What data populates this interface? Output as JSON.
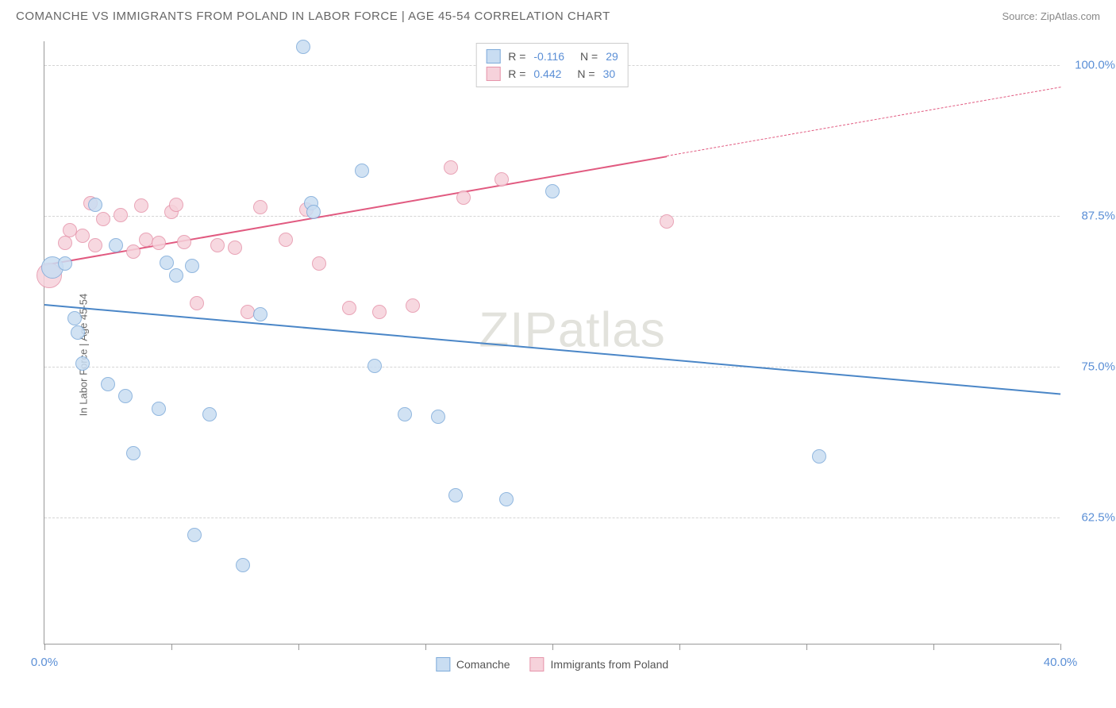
{
  "title": "COMANCHE VS IMMIGRANTS FROM POLAND IN LABOR FORCE | AGE 45-54 CORRELATION CHART",
  "source": "Source: ZipAtlas.com",
  "watermark": "ZIPatlas",
  "ylabel": "In Labor Force | Age 45-54",
  "chart": {
    "type": "scatter",
    "xlim": [
      0,
      40
    ],
    "ylim": [
      52,
      102
    ],
    "yticks": [
      62.5,
      75.0,
      87.5,
      100.0
    ],
    "ytick_labels": [
      "62.5%",
      "75.0%",
      "87.5%",
      "100.0%"
    ],
    "xticks": [
      0,
      5,
      10,
      15,
      20,
      25,
      30,
      35,
      40
    ],
    "xtick_labels_shown": {
      "0": "0.0%",
      "40": "40.0%"
    },
    "background_color": "#ffffff",
    "grid_color": "#d5d5d5",
    "series": [
      {
        "name": "Comanche",
        "color_fill": "#c9ddf2",
        "color_stroke": "#7eabda",
        "line_color": "#4a86c7",
        "R": "-0.116",
        "N": "29",
        "marker_radius": 9,
        "points": [
          {
            "x": 0.3,
            "y": 83.2,
            "r": 14
          },
          {
            "x": 0.8,
            "y": 83.5
          },
          {
            "x": 1.2,
            "y": 79.0
          },
          {
            "x": 1.3,
            "y": 77.8
          },
          {
            "x": 1.5,
            "y": 75.2
          },
          {
            "x": 2.0,
            "y": 88.4
          },
          {
            "x": 2.5,
            "y": 73.5
          },
          {
            "x": 2.8,
            "y": 85.0
          },
          {
            "x": 3.2,
            "y": 72.5
          },
          {
            "x": 3.5,
            "y": 67.8
          },
          {
            "x": 4.5,
            "y": 71.5
          },
          {
            "x": 4.8,
            "y": 83.6
          },
          {
            "x": 5.2,
            "y": 82.5
          },
          {
            "x": 5.8,
            "y": 83.3
          },
          {
            "x": 5.9,
            "y": 61.0
          },
          {
            "x": 6.5,
            "y": 71.0
          },
          {
            "x": 7.8,
            "y": 58.5
          },
          {
            "x": 8.5,
            "y": 79.3
          },
          {
            "x": 10.2,
            "y": 101.5
          },
          {
            "x": 10.5,
            "y": 88.5
          },
          {
            "x": 10.6,
            "y": 87.8
          },
          {
            "x": 12.5,
            "y": 91.2
          },
          {
            "x": 13.0,
            "y": 75.0
          },
          {
            "x": 14.2,
            "y": 71.0
          },
          {
            "x": 15.5,
            "y": 70.8
          },
          {
            "x": 16.2,
            "y": 64.3
          },
          {
            "x": 18.2,
            "y": 64.0
          },
          {
            "x": 20.0,
            "y": 89.5
          },
          {
            "x": 30.5,
            "y": 67.5
          }
        ],
        "trend": {
          "x1": 0,
          "y1": 80.2,
          "x2": 40,
          "y2": 72.8,
          "dash_after_x": 40
        }
      },
      {
        "name": "Immigrants from Poland",
        "color_fill": "#f6d2db",
        "color_stroke": "#e695ab",
        "line_color": "#e15a80",
        "R": "0.442",
        "N": "30",
        "marker_radius": 9,
        "points": [
          {
            "x": 0.2,
            "y": 82.5,
            "r": 16
          },
          {
            "x": 0.8,
            "y": 85.2
          },
          {
            "x": 1.0,
            "y": 86.3
          },
          {
            "x": 1.5,
            "y": 85.8
          },
          {
            "x": 1.8,
            "y": 88.5
          },
          {
            "x": 2.0,
            "y": 85.0
          },
          {
            "x": 2.3,
            "y": 87.2
          },
          {
            "x": 3.0,
            "y": 87.5
          },
          {
            "x": 3.5,
            "y": 84.5
          },
          {
            "x": 3.8,
            "y": 88.3
          },
          {
            "x": 4.0,
            "y": 85.5
          },
          {
            "x": 4.5,
            "y": 85.2
          },
          {
            "x": 5.0,
            "y": 87.8
          },
          {
            "x": 5.2,
            "y": 88.4
          },
          {
            "x": 5.5,
            "y": 85.3
          },
          {
            "x": 6.0,
            "y": 80.2
          },
          {
            "x": 6.8,
            "y": 85.0
          },
          {
            "x": 7.5,
            "y": 84.8
          },
          {
            "x": 8.0,
            "y": 79.5
          },
          {
            "x": 8.5,
            "y": 88.2
          },
          {
            "x": 9.5,
            "y": 85.5
          },
          {
            "x": 10.3,
            "y": 88.0
          },
          {
            "x": 10.8,
            "y": 83.5
          },
          {
            "x": 12.0,
            "y": 79.8
          },
          {
            "x": 13.2,
            "y": 79.5
          },
          {
            "x": 14.5,
            "y": 80.0
          },
          {
            "x": 16.0,
            "y": 91.5
          },
          {
            "x": 16.5,
            "y": 89.0
          },
          {
            "x": 18.0,
            "y": 90.5
          },
          {
            "x": 24.5,
            "y": 87.0
          }
        ],
        "trend": {
          "x1": 0,
          "y1": 83.5,
          "x2": 24.5,
          "y2": 92.5,
          "dash_after_x": 24.5,
          "dash_x2": 40,
          "dash_y2": 98.2
        }
      }
    ]
  },
  "legend_bottom": [
    {
      "label": "Comanche",
      "fill": "#c9ddf2",
      "stroke": "#7eabda"
    },
    {
      "label": "Immigrants from Poland",
      "fill": "#f6d2db",
      "stroke": "#e695ab"
    }
  ]
}
